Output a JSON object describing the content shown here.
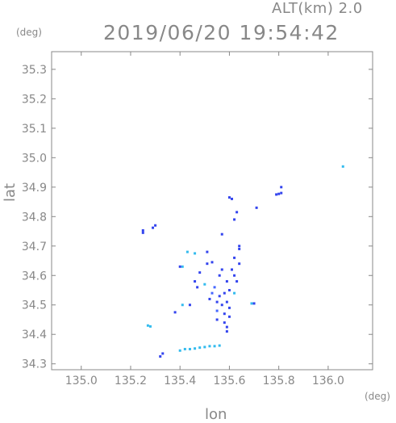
{
  "header": {
    "altitude": "ALT(km) 2.0",
    "timestamp": "2019/06/20 19:54:42"
  },
  "axis_units": {
    "x": "(deg)",
    "y": "(deg)"
  },
  "chart_data": {
    "type": "scatter",
    "xlabel": "lon",
    "ylabel": "lat",
    "xlim": [
      134.88,
      136.18
    ],
    "ylim": [
      34.28,
      35.36
    ],
    "x_ticks": [
      "135.0",
      "135.2",
      "135.4",
      "135.6",
      "135.8",
      "136.0"
    ],
    "y_ticks": [
      "34.3",
      "34.4",
      "34.5",
      "34.6",
      "34.7",
      "34.8",
      "34.9",
      "35.0",
      "35.1",
      "35.2",
      "35.3"
    ],
    "grid": false,
    "colors": {
      "strong": "#3344ee",
      "medium": "#4466ff",
      "weak": "#33bbee",
      "axis": "#888888"
    },
    "points": [
      {
        "x": 135.25,
        "y": 34.753,
        "c": "strong"
      },
      {
        "x": 135.25,
        "y": 34.745,
        "c": "strong"
      },
      {
        "x": 135.29,
        "y": 34.762,
        "c": "strong"
      },
      {
        "x": 135.3,
        "y": 34.77,
        "c": "strong"
      },
      {
        "x": 135.27,
        "y": 34.43,
        "c": "weak"
      },
      {
        "x": 135.28,
        "y": 34.427,
        "c": "weak"
      },
      {
        "x": 135.32,
        "y": 34.325,
        "c": "strong"
      },
      {
        "x": 135.33,
        "y": 34.335,
        "c": "strong"
      },
      {
        "x": 135.38,
        "y": 34.475,
        "c": "strong"
      },
      {
        "x": 135.41,
        "y": 34.5,
        "c": "weak"
      },
      {
        "x": 135.41,
        "y": 34.63,
        "c": "weak"
      },
      {
        "x": 135.43,
        "y": 34.68,
        "c": "weak"
      },
      {
        "x": 135.4,
        "y": 34.345,
        "c": "weak"
      },
      {
        "x": 135.42,
        "y": 34.35,
        "c": "weak"
      },
      {
        "x": 135.44,
        "y": 34.35,
        "c": "weak"
      },
      {
        "x": 135.46,
        "y": 34.352,
        "c": "weak"
      },
      {
        "x": 135.48,
        "y": 34.355,
        "c": "weak"
      },
      {
        "x": 135.5,
        "y": 34.357,
        "c": "weak"
      },
      {
        "x": 135.52,
        "y": 34.36,
        "c": "weak"
      },
      {
        "x": 135.54,
        "y": 34.36,
        "c": "weak"
      },
      {
        "x": 135.56,
        "y": 34.362,
        "c": "weak"
      },
      {
        "x": 135.46,
        "y": 34.675,
        "c": "weak"
      },
      {
        "x": 135.46,
        "y": 34.58,
        "c": "strong"
      },
      {
        "x": 135.47,
        "y": 34.56,
        "c": "strong"
      },
      {
        "x": 135.5,
        "y": 34.57,
        "c": "weak"
      },
      {
        "x": 135.51,
        "y": 34.64,
        "c": "strong"
      },
      {
        "x": 135.53,
        "y": 34.645,
        "c": "strong"
      },
      {
        "x": 135.52,
        "y": 34.52,
        "c": "strong"
      },
      {
        "x": 135.53,
        "y": 34.54,
        "c": "medium"
      },
      {
        "x": 135.54,
        "y": 34.56,
        "c": "medium"
      },
      {
        "x": 135.55,
        "y": 34.51,
        "c": "strong"
      },
      {
        "x": 135.55,
        "y": 34.48,
        "c": "medium"
      },
      {
        "x": 135.56,
        "y": 34.53,
        "c": "strong"
      },
      {
        "x": 135.56,
        "y": 34.6,
        "c": "strong"
      },
      {
        "x": 135.57,
        "y": 34.5,
        "c": "strong"
      },
      {
        "x": 135.57,
        "y": 34.62,
        "c": "strong"
      },
      {
        "x": 135.58,
        "y": 34.54,
        "c": "strong"
      },
      {
        "x": 135.58,
        "y": 34.47,
        "c": "strong"
      },
      {
        "x": 135.59,
        "y": 34.51,
        "c": "strong"
      },
      {
        "x": 135.59,
        "y": 34.58,
        "c": "strong"
      },
      {
        "x": 135.6,
        "y": 34.49,
        "c": "strong"
      },
      {
        "x": 135.6,
        "y": 34.55,
        "c": "strong"
      },
      {
        "x": 135.61,
        "y": 34.62,
        "c": "strong"
      },
      {
        "x": 135.62,
        "y": 34.54,
        "c": "weak"
      },
      {
        "x": 135.62,
        "y": 34.6,
        "c": "strong"
      },
      {
        "x": 135.62,
        "y": 34.66,
        "c": "strong"
      },
      {
        "x": 135.63,
        "y": 34.58,
        "c": "strong"
      },
      {
        "x": 135.64,
        "y": 34.69,
        "c": "strong"
      },
      {
        "x": 135.64,
        "y": 34.64,
        "c": "strong"
      },
      {
        "x": 135.58,
        "y": 34.44,
        "c": "strong"
      },
      {
        "x": 135.59,
        "y": 34.425,
        "c": "strong"
      },
      {
        "x": 135.59,
        "y": 34.41,
        "c": "strong"
      },
      {
        "x": 135.6,
        "y": 34.46,
        "c": "strong"
      },
      {
        "x": 135.55,
        "y": 34.45,
        "c": "strong"
      },
      {
        "x": 135.69,
        "y": 34.505,
        "c": "weak"
      },
      {
        "x": 135.7,
        "y": 34.505,
        "c": "strong"
      },
      {
        "x": 135.64,
        "y": 34.7,
        "c": "strong"
      },
      {
        "x": 135.62,
        "y": 34.79,
        "c": "strong"
      },
      {
        "x": 135.63,
        "y": 34.815,
        "c": "strong"
      },
      {
        "x": 135.61,
        "y": 34.86,
        "c": "strong"
      },
      {
        "x": 135.6,
        "y": 34.865,
        "c": "strong"
      },
      {
        "x": 135.71,
        "y": 34.83,
        "c": "strong"
      },
      {
        "x": 135.79,
        "y": 34.875,
        "c": "strong"
      },
      {
        "x": 135.8,
        "y": 34.877,
        "c": "strong"
      },
      {
        "x": 135.81,
        "y": 34.88,
        "c": "strong"
      },
      {
        "x": 135.81,
        "y": 34.9,
        "c": "strong"
      },
      {
        "x": 136.06,
        "y": 34.97,
        "c": "weak"
      },
      {
        "x": 135.4,
        "y": 34.63,
        "c": "strong"
      },
      {
        "x": 135.48,
        "y": 34.61,
        "c": "strong"
      },
      {
        "x": 135.51,
        "y": 34.68,
        "c": "strong"
      },
      {
        "x": 135.44,
        "y": 34.5,
        "c": "strong"
      },
      {
        "x": 135.57,
        "y": 34.74,
        "c": "strong"
      }
    ]
  }
}
